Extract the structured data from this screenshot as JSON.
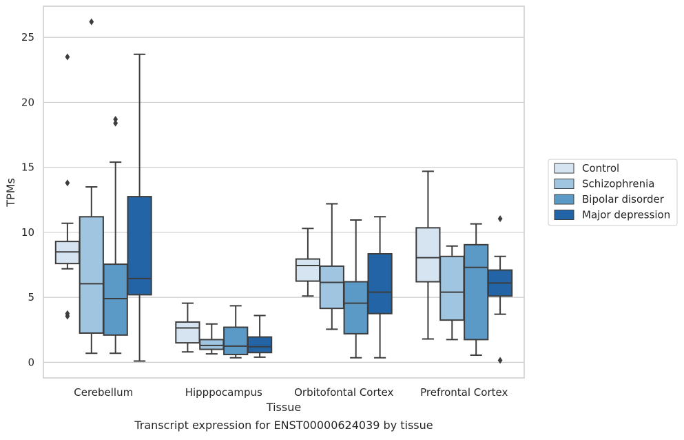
{
  "chart_data": {
    "type": "box",
    "xlabel": "Tissue",
    "ylabel": "TPMs",
    "caption": "Transcript expression for ENST00000624039 by tissue",
    "categories": [
      "Cerebellum",
      "Hipppocampus",
      "Orbitofontal Cortex",
      "Prefrontal Cortex"
    ],
    "ylim": [
      -1.2,
      27.4
    ],
    "yticks": [
      0,
      5,
      10,
      15,
      20,
      25
    ],
    "grid": "horizontal",
    "legend_position": "right",
    "series": [
      {
        "name": "Control",
        "color": "#d6e4f1",
        "boxes": [
          {
            "whislo": 7.2,
            "q1": 7.6,
            "med": 8.5,
            "q3": 9.3,
            "whishi": 10.7,
            "fliers": [
              3.55,
              3.75,
              13.8,
              23.5
            ]
          },
          {
            "whislo": 0.8,
            "q1": 1.5,
            "med": 2.65,
            "q3": 3.1,
            "whishi": 4.55,
            "fliers": []
          },
          {
            "whislo": 5.1,
            "q1": 6.25,
            "med": 7.45,
            "q3": 7.95,
            "whishi": 10.3,
            "fliers": []
          },
          {
            "whislo": 1.8,
            "q1": 6.2,
            "med": 8.05,
            "q3": 10.35,
            "whishi": 14.7,
            "fliers": []
          }
        ]
      },
      {
        "name": "Schizophrenia",
        "color": "#9fc5e0",
        "boxes": [
          {
            "whislo": 0.7,
            "q1": 2.25,
            "med": 6.05,
            "q3": 11.2,
            "whishi": 13.5,
            "fliers": [
              26.2
            ]
          },
          {
            "whislo": 0.65,
            "q1": 1.0,
            "med": 1.3,
            "q3": 1.75,
            "whishi": 2.95,
            "fliers": []
          },
          {
            "whislo": 2.55,
            "q1": 4.15,
            "med": 6.15,
            "q3": 7.4,
            "whishi": 12.2,
            "fliers": []
          },
          {
            "whislo": 1.75,
            "q1": 3.25,
            "med": 5.4,
            "q3": 8.15,
            "whishi": 8.95,
            "fliers": []
          }
        ]
      },
      {
        "name": "Bipolar disorder",
        "color": "#5b9ac7",
        "boxes": [
          {
            "whislo": 0.7,
            "q1": 2.1,
            "med": 4.9,
            "q3": 7.55,
            "whishi": 15.4,
            "fliers": [
              18.4,
              18.7
            ]
          },
          {
            "whislo": 0.35,
            "q1": 0.6,
            "med": 1.25,
            "q3": 2.7,
            "whishi": 4.35,
            "fliers": []
          },
          {
            "whislo": 0.35,
            "q1": 2.2,
            "med": 4.55,
            "q3": 6.2,
            "whishi": 10.95,
            "fliers": []
          },
          {
            "whislo": 0.55,
            "q1": 1.75,
            "med": 7.3,
            "q3": 9.05,
            "whishi": 10.65,
            "fliers": []
          }
        ]
      },
      {
        "name": "Major depression",
        "color": "#2264a5",
        "boxes": [
          {
            "whislo": 0.1,
            "q1": 5.2,
            "med": 6.45,
            "q3": 12.75,
            "whishi": 23.7,
            "fliers": []
          },
          {
            "whislo": 0.4,
            "q1": 0.75,
            "med": 1.2,
            "q3": 1.95,
            "whishi": 3.6,
            "fliers": []
          },
          {
            "whislo": 0.35,
            "q1": 3.75,
            "med": 5.4,
            "q3": 8.35,
            "whishi": 11.2,
            "fliers": []
          },
          {
            "whislo": 3.7,
            "q1": 5.1,
            "med": 6.1,
            "q3": 7.1,
            "whishi": 8.15,
            "fliers": [
              0.15,
              11.05
            ]
          }
        ]
      }
    ]
  }
}
